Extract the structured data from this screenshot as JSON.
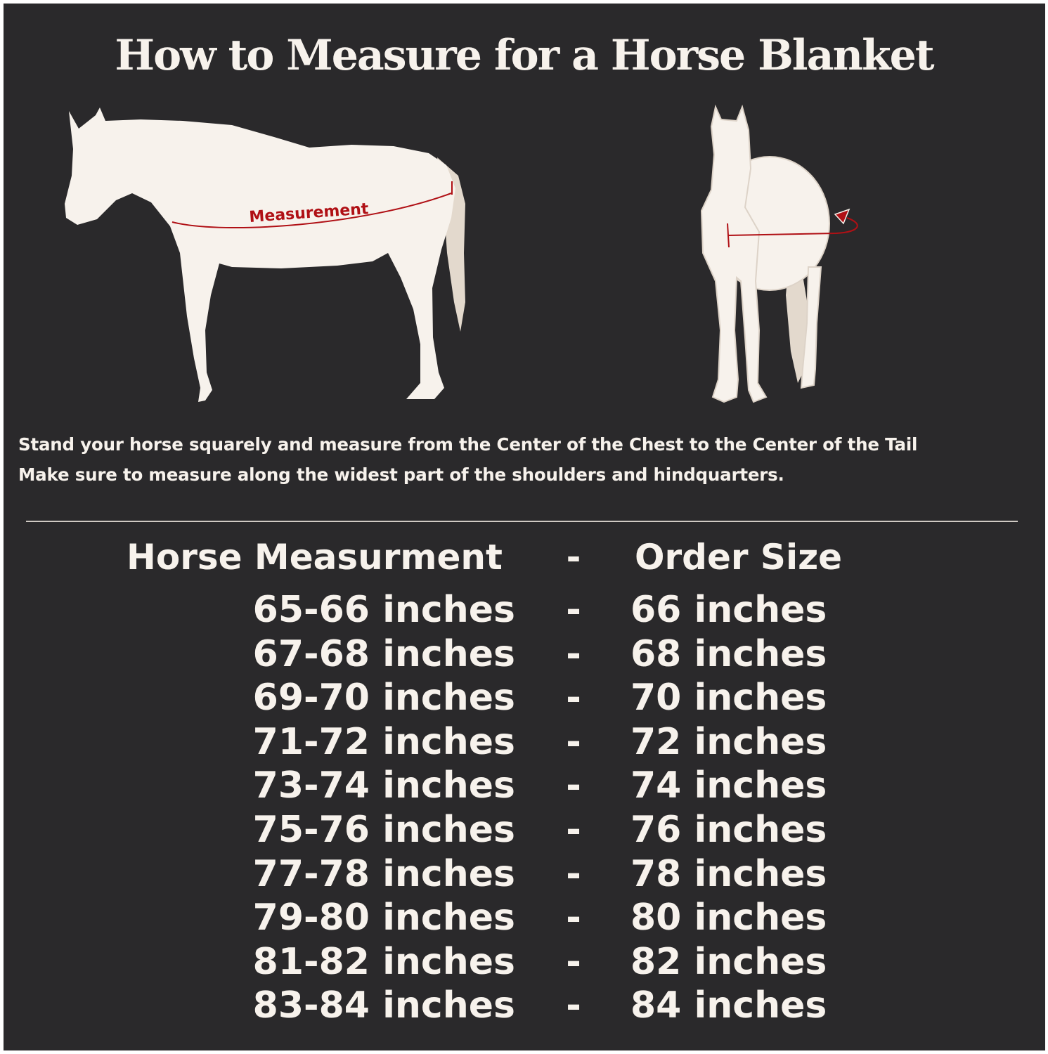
{
  "title": "How to Measure for a Horse Blanket",
  "diagram": {
    "measurement_label": "Measurement",
    "colors": {
      "background": "#2a292b",
      "horse": "#f7f2ec",
      "tail": "#e3d9cd",
      "measure_line": "#b01015"
    }
  },
  "instructions": [
    "Stand your horse squarely and measure from the Center of the Chest to the Center of the Tail",
    "Make sure to measure along the widest part of the shoulders and hindquarters."
  ],
  "size_table": {
    "headers": {
      "measurement": "Horse Measurment",
      "separator": "-",
      "size": "Order Size"
    },
    "rows": [
      {
        "measurement": "65-66 inches",
        "separator": "-",
        "size": "66 inches"
      },
      {
        "measurement": "67-68 inches",
        "separator": "-",
        "size": "68 inches"
      },
      {
        "measurement": "69-70 inches",
        "separator": "-",
        "size": "70 inches"
      },
      {
        "measurement": "71-72 inches",
        "separator": "-",
        "size": "72 inches"
      },
      {
        "measurement": "73-74 inches",
        "separator": "-",
        "size": "74 inches"
      },
      {
        "measurement": "75-76 inches",
        "separator": "-",
        "size": "76 inches"
      },
      {
        "measurement": "77-78 inches",
        "separator": "-",
        "size": "78 inches"
      },
      {
        "measurement": "79-80 inches",
        "separator": "-",
        "size": "80 inches"
      },
      {
        "measurement": "81-82 inches",
        "separator": "-",
        "size": "82 inches"
      },
      {
        "measurement": "83-84 inches",
        "separator": "-",
        "size": "84 inches"
      }
    ]
  }
}
